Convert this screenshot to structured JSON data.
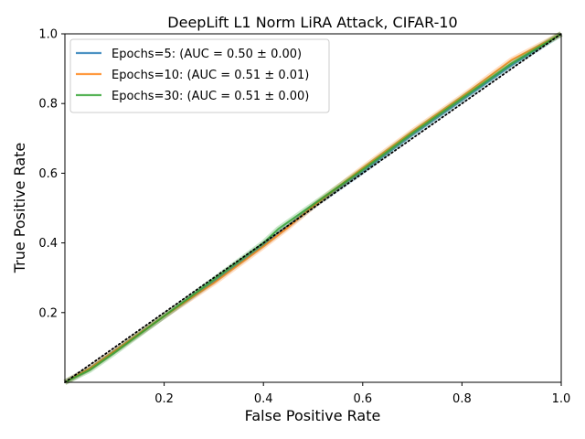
{
  "chart_data": {
    "type": "line",
    "title": "DeepLift L1 Norm LiRA Attack, CIFAR-10",
    "xlabel": "False Positive Rate",
    "ylabel": "True Positive Rate",
    "xlim": [
      0,
      1
    ],
    "ylim": [
      0,
      1
    ],
    "xticks": [
      0.2,
      0.4,
      0.6,
      0.8,
      1.0
    ],
    "xtick_labels": [
      "0.2",
      "0.4",
      "0.6",
      "0.8",
      "1.0"
    ],
    "yticks": [
      0.2,
      0.4,
      0.6,
      0.8,
      1.0
    ],
    "ytick_labels": [
      "0.2",
      "0.4",
      "0.6",
      "0.8",
      "1.0"
    ],
    "grid": false,
    "legend_position": "top-left",
    "diagonal": {
      "style": "dotted",
      "color": "#000000",
      "x": [
        0,
        1
      ],
      "y": [
        0,
        1
      ]
    },
    "series": [
      {
        "name": "Epochs=5: (AUC = 0.50 ± 0.00)",
        "color": "#1f77b4",
        "x": [
          0,
          0.05,
          0.1,
          0.2,
          0.3,
          0.4,
          0.45,
          0.5,
          0.6,
          0.7,
          0.8,
          0.9,
          1.0
        ],
        "y": [
          0,
          0.04,
          0.09,
          0.19,
          0.29,
          0.395,
          0.45,
          0.505,
          0.605,
          0.71,
          0.81,
          0.91,
          1.0
        ]
      },
      {
        "name": "Epochs=10: (AUC = 0.51 ± 0.01)",
        "color": "#ff7f0e",
        "x": [
          0,
          0.05,
          0.1,
          0.2,
          0.3,
          0.4,
          0.45,
          0.5,
          0.6,
          0.7,
          0.8,
          0.9,
          1.0
        ],
        "y": [
          0,
          0.04,
          0.09,
          0.19,
          0.285,
          0.39,
          0.445,
          0.505,
          0.615,
          0.72,
          0.82,
          0.925,
          1.0
        ]
      },
      {
        "name": "Epochs=30: (AUC = 0.51 ± 0.00)",
        "color": "#2ca02c",
        "x": [
          0,
          0.05,
          0.1,
          0.2,
          0.3,
          0.4,
          0.43,
          0.5,
          0.6,
          0.7,
          0.8,
          0.9,
          1.0
        ],
        "y": [
          0,
          0.035,
          0.085,
          0.19,
          0.295,
          0.4,
          0.44,
          0.51,
          0.61,
          0.715,
          0.815,
          0.915,
          1.0
        ]
      }
    ]
  }
}
